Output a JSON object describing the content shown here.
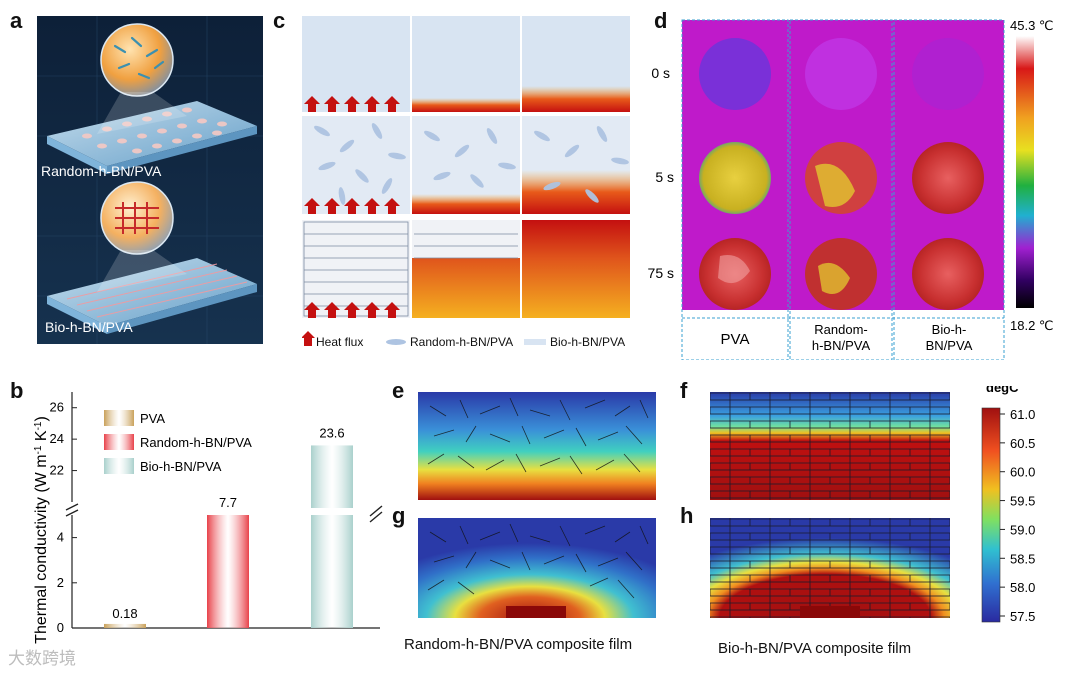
{
  "panels": {
    "a": "a",
    "b": "b",
    "c": "c",
    "d": "d",
    "e": "e",
    "f": "f",
    "g": "g",
    "h": "h"
  },
  "panel_a": {
    "top_label": "Random-h-BN/PVA",
    "bottom_label": "Bio-h-BN/PVA"
  },
  "panel_c": {
    "legend": {
      "heat": "Heat flux",
      "random": "Random-h-BN/PVA",
      "bio": "Bio-h-BN/PVA"
    }
  },
  "panel_d": {
    "times": [
      "0 s",
      "5 s",
      "75 s"
    ],
    "columns": [
      "PVA",
      "Random-\nh-BN/PVA",
      "Bio-h-\nBN/PVA"
    ],
    "col_lines": [
      [
        "PVA"
      ],
      [
        "Random-",
        "h-BN/PVA"
      ],
      [
        "Bio-h-",
        "BN/PVA"
      ]
    ],
    "scale_max": "45.3 ℃",
    "scale_min": "18.2 ℃"
  },
  "panel_eh": {
    "caption_left": "Random-h-BN/PVA composite film",
    "caption_right": "Bio-h-BN/PVA composite film",
    "colorbar_title": "degC",
    "colorbar_ticks": [
      "61.0",
      "60.5",
      "60.0",
      "59.5",
      "59.0",
      "58.5",
      "58.0",
      "57.5"
    ]
  },
  "chart_data": {
    "type": "bar",
    "ylabel": "Thermal conductivity (W m-1 K-1)",
    "categories": [
      "PVA",
      "Random-h-BN/PVA",
      "Bio-h-BN/PVA"
    ],
    "values": [
      0.18,
      7.7,
      23.6
    ],
    "value_labels": [
      "0.18",
      "7.7",
      "23.6"
    ],
    "axis_break": true,
    "lower_range": [
      0,
      5
    ],
    "upper_range": [
      20,
      27
    ],
    "lower_ticks": [
      "0",
      "2",
      "4"
    ],
    "upper_ticks": [
      "22",
      "24",
      "26"
    ],
    "colors": [
      "#c9a15a",
      "#e8424a",
      "#a9d0cc"
    ],
    "legend_position": "top-left"
  },
  "watermark": "大数跨境"
}
